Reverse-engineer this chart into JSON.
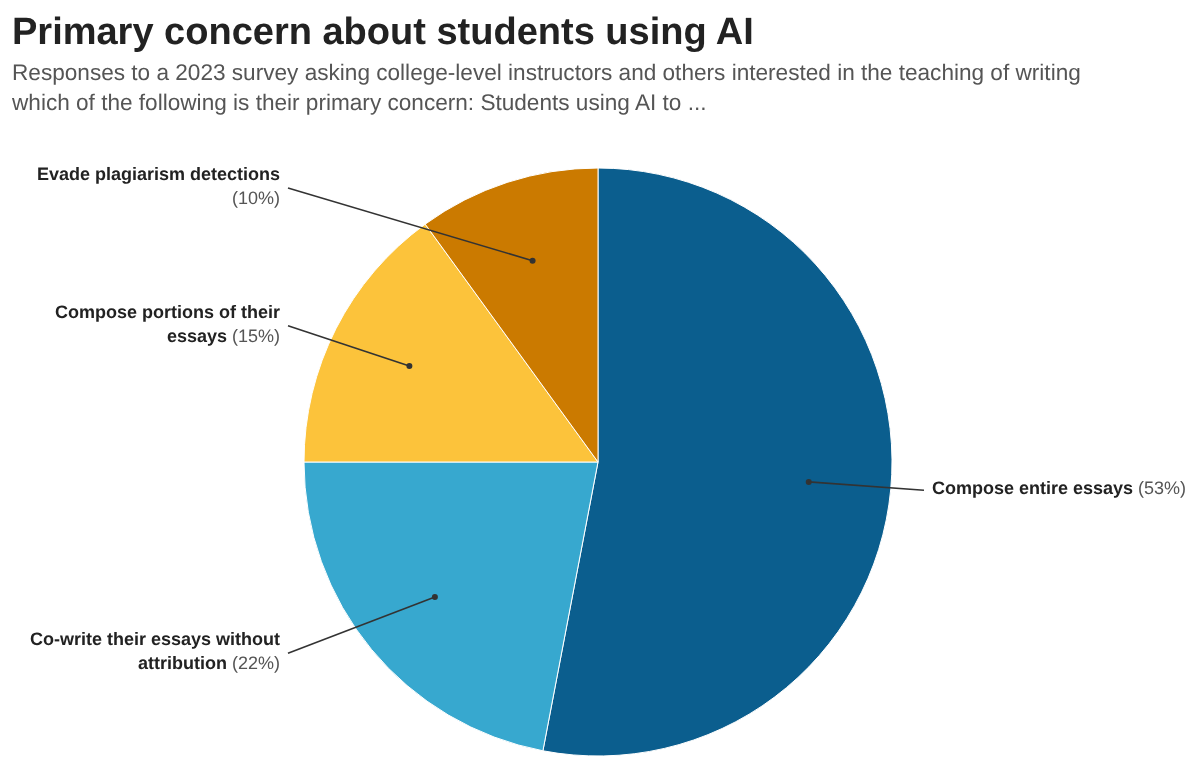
{
  "chart_data": {
    "type": "pie",
    "title": "Primary concern about students using AI",
    "subtitle": "Responses to a 2023 survey asking college-level instructors and others interested in the teaching of writing which of the following is their primary concern: Students using AI to ...",
    "categories": [
      "Compose entire essays",
      "Co-write their essays without attribution",
      "Compose portions of their essays",
      "Evade plagiarism detections"
    ],
    "values": [
      53,
      22,
      15,
      10
    ],
    "colors": [
      "#0b5e8e",
      "#37a8cf",
      "#fcc33b",
      "#cb7a00"
    ],
    "value_labels": [
      "(53%)",
      "(22%)",
      "(15%)",
      "(10%)"
    ]
  }
}
